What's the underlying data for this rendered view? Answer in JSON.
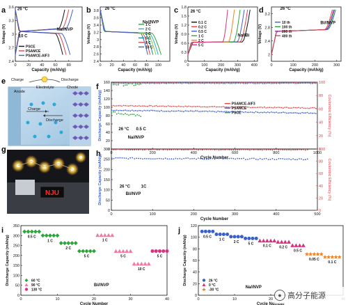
{
  "watermark": {
    "text": "高分子能源",
    "icon": "wechat-icon"
  },
  "colors": {
    "black": "#111111",
    "green": "#2ca53a",
    "blue": "#3a5fcd",
    "red": "#e3424a",
    "pink": "#f07aa0",
    "magenta": "#d6337f",
    "orange": "#f07f22",
    "cyan": "#1fb5c9",
    "lime": "#8ccf3a",
    "teal": "#138e8e",
    "purple": "#8b2bb5"
  },
  "chart_data": [
    {
      "id": "a",
      "letter": "a",
      "type": "line",
      "xlabel": "Capacity (mAh/g)",
      "ylabel": "Voltage (V)",
      "xlim": [
        0,
        100
      ],
      "ylim": [
        2.4,
        3.6
      ],
      "xticks": [
        0,
        20,
        40,
        60,
        80
      ],
      "yticks": [
        2.4,
        2.7,
        3.0,
        3.3,
        3.6
      ],
      "annotations": [
        {
          "text": "26 °C",
          "x": 3,
          "y": 3.53
        },
        {
          "text": "Na//NVP",
          "x": 62,
          "y": 3.08
        },
        {
          "text": "10 C",
          "x": 5,
          "y": 2.93
        }
      ],
      "legend": {
        "position": "bottom-left",
        "entries": [
          "PSCE",
          "PSAMCE",
          "PSAMCE-AIF3"
        ]
      },
      "series": [
        {
          "name": "PSCE",
          "color": "#111111",
          "shape": "charge",
          "cap": 74
        },
        {
          "name": "PSCE",
          "color": "#111111",
          "shape": "discharge",
          "cap": 71
        },
        {
          "name": "PSAMCE",
          "color": "#e3424a",
          "shape": "charge",
          "cap": 80
        },
        {
          "name": "PSAMCE",
          "color": "#e3424a",
          "shape": "discharge",
          "cap": 76
        },
        {
          "name": "PSAMCE-AIF3",
          "color": "#3a5fcd",
          "shape": "charge",
          "cap": 86
        },
        {
          "name": "PSAMCE-AIF3",
          "color": "#3a5fcd",
          "shape": "discharge",
          "cap": 82
        }
      ]
    },
    {
      "id": "b",
      "letter": "b",
      "type": "line",
      "xlabel": "Capacity (mAh/g)",
      "ylabel": "Voltage (V)",
      "xlim": [
        0,
        120
      ],
      "ylim": [
        2.4,
        3.9
      ],
      "xticks": [
        0,
        20,
        40,
        60,
        80,
        100
      ],
      "yticks": [
        2.4,
        2.6,
        2.8,
        3.0,
        3.2,
        3.4,
        3.6,
        3.8
      ],
      "annotations": [
        {
          "text": "26 °C",
          "x": 8,
          "y": 3.82
        },
        {
          "text": "Na//NVP",
          "x": 73,
          "y": 3.45
        }
      ],
      "legend": {
        "position": "center-right",
        "entries": [
          "1 C",
          "2 C",
          "3 C",
          "5 C",
          "8 C",
          "10 C"
        ]
      },
      "series": [
        {
          "name": "1 C",
          "color": "#2ca53a",
          "shape": "discharge",
          "cap": 105
        },
        {
          "name": "2 C",
          "color": "#1fb5c9",
          "shape": "discharge",
          "cap": 100
        },
        {
          "name": "3 C",
          "color": "#8ccf3a",
          "shape": "discharge",
          "cap": 96
        },
        {
          "name": "5 C",
          "color": "#138e8e",
          "shape": "discharge",
          "cap": 91
        },
        {
          "name": "8 C",
          "color": "#e3424a",
          "shape": "discharge",
          "cap": 86
        },
        {
          "name": "10 C",
          "color": "#3a5fcd",
          "shape": "discharge",
          "cap": 82
        }
      ]
    },
    {
      "id": "c",
      "letter": "c",
      "type": "line",
      "xlabel": "Capacity (mAh/g)",
      "ylabel": "Voltage (V)",
      "xlim": [
        0,
        420
      ],
      "ylim": [
        0.0,
        1.8
      ],
      "xticks": [
        0,
        100,
        200,
        300,
        400
      ],
      "yticks": [
        0.0,
        0.3,
        0.6,
        0.9,
        1.2,
        1.5,
        1.8
      ],
      "annotations": [
        {
          "text": "26 °C",
          "x": 15,
          "y": 1.62
        },
        {
          "text": "Na//Bi",
          "x": 300,
          "y": 0.82
        }
      ],
      "legend": {
        "position": "center-left",
        "entries": [
          "0.1 C",
          "0.2 C",
          "0.5 C",
          "1 C",
          "2 C",
          "5 C"
        ]
      },
      "series": [
        {
          "name": "0.1 C",
          "color": "#111111",
          "shape": "charge",
          "cap": 375
        },
        {
          "name": "0.2 C",
          "color": "#e3424a",
          "shape": "charge",
          "cap": 360
        },
        {
          "name": "0.5 C",
          "color": "#3a5fcd",
          "shape": "charge",
          "cap": 340
        },
        {
          "name": "1 C",
          "color": "#2ca53a",
          "shape": "charge",
          "cap": 315
        },
        {
          "name": "2 C",
          "color": "#f07f22",
          "shape": "charge",
          "cap": 280
        },
        {
          "name": "5 C",
          "color": "#d6337f",
          "shape": "charge",
          "cap": 240
        }
      ]
    },
    {
      "id": "d",
      "letter": "d",
      "type": "line",
      "xlabel": "Capacity (mAh/g)",
      "ylabel": "Voltage (V)",
      "xlim": [
        0,
        320
      ],
      "ylim": [
        1.8,
        3.4
      ],
      "xticks": [
        0,
        100,
        200,
        300
      ],
      "yticks": [
        2.0,
        2.4,
        2.8,
        3.2
      ],
      "annotations": [
        {
          "text": "26 °C",
          "x": 40,
          "y": 3.32
        },
        {
          "text": "Bi//NVP",
          "x": 225,
          "y": 2.9
        }
      ],
      "legend": {
        "position": "center-left",
        "entries": [
          "10 th",
          "100 th",
          "200 th",
          "400 th"
        ]
      },
      "series": [
        {
          "name": "10 th",
          "color": "#3a5fcd",
          "shape": "charge",
          "cap": 295
        },
        {
          "name": "100 th",
          "color": "#2ca53a",
          "shape": "charge",
          "cap": 290
        },
        {
          "name": "200 th",
          "color": "#8b2bb5",
          "shape": "charge",
          "cap": 286
        },
        {
          "name": "400 th",
          "color": "#e3424a",
          "shape": "charge",
          "cap": 280
        }
      ]
    },
    {
      "id": "f",
      "letter": "f",
      "type": "scatter",
      "xlabel": "Cycle Number",
      "ylabel": "Discharge Capacity (mAh/g)",
      "y2label": "Coulombic Efficiency (%)",
      "xlim": [
        0,
        1000
      ],
      "ylim": [
        0,
        160
      ],
      "y2lim": [
        0,
        100
      ],
      "xticks": [
        0,
        200,
        400,
        600,
        800,
        1000
      ],
      "yticks": [
        0,
        20,
        40,
        60,
        80,
        100,
        120,
        140,
        160
      ],
      "y2ticks": [
        0,
        20,
        40,
        60,
        80,
        100
      ],
      "annotations": [
        {
          "text": "26 °C",
          "x": 35,
          "y": 45
        },
        {
          "text": "0.5 C",
          "x": 120,
          "y": 45
        },
        {
          "text": "Na//NVP",
          "x": 80,
          "y": 25
        }
      ],
      "legend": {
        "position": "center-right",
        "entries": [
          "PSAMCE-AIF3",
          "PSAMCE",
          "PSCE"
        ]
      },
      "series": [
        {
          "name": "PSAMCE-AIF3",
          "color": "#e3424a",
          "axis": "y",
          "xmax": 1000,
          "start": 104,
          "end": 98,
          "noise": 1.0
        },
        {
          "name": "PSAMCE",
          "color": "#3a5fcd",
          "axis": "y",
          "xmax": 1000,
          "start": 93,
          "end": 86,
          "noise": 1.2
        },
        {
          "name": "PSCE",
          "color": "#2ca53a",
          "axis": "y",
          "xmax": 150,
          "start": 88,
          "end": 78,
          "noise": 2.5
        },
        {
          "name": "CE PSAMCE-AIF3",
          "color": "#e3424a",
          "axis": "y2",
          "xmax": 1000,
          "start": 99,
          "end": 99,
          "noise": 0.4
        },
        {
          "name": "CE PSAMCE",
          "color": "#3a5fcd",
          "axis": "y2",
          "xmax": 1000,
          "start": 98.5,
          "end": 98.5,
          "noise": 0.5
        },
        {
          "name": "CE PSCE",
          "color": "#2ca53a",
          "axis": "y2",
          "xmax": 150,
          "start": 97,
          "end": 96,
          "noise": 2.0
        }
      ]
    },
    {
      "id": "h",
      "letter": "h",
      "type": "scatter",
      "xlabel": "Cycle Number",
      "ylabel": "Discharge Capacity (mAh/g)",
      "y2label": "Coulombic Efficiency (%)",
      "xlim": [
        0,
        500
      ],
      "ylim": [
        0,
        300
      ],
      "y2lim": [
        0,
        100
      ],
      "xticks": [
        0,
        100,
        200,
        300,
        400,
        500
      ],
      "yticks": [
        0,
        50,
        100,
        150,
        200,
        250,
        300
      ],
      "y2ticks": [
        0,
        20,
        40,
        60,
        80,
        100
      ],
      "annotations": [
        {
          "text": "26 °C",
          "x": 20,
          "y": 110
        },
        {
          "text": "1C",
          "x": 72,
          "y": 110
        },
        {
          "text": "Bi//NVP",
          "x": 35,
          "y": 75
        }
      ],
      "series": [
        {
          "name": "Capacity",
          "color": "#3a5fcd",
          "axis": "y",
          "xmax": 480,
          "start": 255,
          "end": 250,
          "noise": 3
        },
        {
          "name": "CE",
          "color": "#e3424a",
          "axis": "y2",
          "xmax": 480,
          "start": 99,
          "end": 98.5,
          "noise": 0.6
        }
      ]
    },
    {
      "id": "i",
      "letter": "i",
      "type": "rate",
      "xlabel": "Cycle Number",
      "ylabel": "Discharge Capacity (mAh/g)",
      "xlim": [
        0,
        40
      ],
      "ylim": [
        0,
        350
      ],
      "xticks": [
        0,
        10,
        20,
        30,
        40
      ],
      "yticks": [
        0,
        50,
        100,
        150,
        200,
        250,
        300,
        350
      ],
      "annotations": [
        {
          "text": "Bi//NVP",
          "x": 20,
          "y": 45
        }
      ],
      "legend": {
        "position": "bottom-left",
        "entries": [
          "60 °C",
          "90 °C",
          "130 °C"
        ]
      },
      "segments": [
        {
          "series": "60 °C",
          "color": "#2ca53a",
          "marker": "diamond",
          "x0": 1,
          "x1": 5,
          "y": 320,
          "label": "0.5 C"
        },
        {
          "series": "60 °C",
          "color": "#2ca53a",
          "marker": "diamond",
          "x0": 6,
          "x1": 10,
          "y": 300,
          "label": "1 C"
        },
        {
          "series": "60 °C",
          "color": "#2ca53a",
          "marker": "diamond",
          "x0": 11,
          "x1": 15,
          "y": 262,
          "label": "2 C"
        },
        {
          "series": "60 °C",
          "color": "#2ca53a",
          "marker": "diamond",
          "x0": 16,
          "x1": 20,
          "y": 222,
          "label": "5 C"
        },
        {
          "series": "90 °C",
          "color": "#f07aa0",
          "marker": "triangle",
          "x0": 21,
          "x1": 25,
          "y": 302,
          "label": "1 C"
        },
        {
          "series": "90 °C",
          "color": "#f07aa0",
          "marker": "triangle",
          "x0": 26,
          "x1": 30,
          "y": 222,
          "label": "5 C"
        },
        {
          "series": "90 °C",
          "color": "#f07aa0",
          "marker": "triangle",
          "x0": 31,
          "x1": 35,
          "y": 158,
          "label": "10 C"
        },
        {
          "series": "130 °C",
          "color": "#d6337f",
          "marker": "circle",
          "x0": 36,
          "x1": 40,
          "y": 222,
          "label": "5 C"
        }
      ]
    },
    {
      "id": "j",
      "letter": "j",
      "type": "rate",
      "xlabel": "Cycle Number",
      "ylabel": "Discharge Capacity (mAh/g)",
      "xlim": [
        0,
        40
      ],
      "ylim": [
        0,
        120
      ],
      "xticks": [
        0,
        10,
        20,
        30,
        40
      ],
      "yticks": [
        0,
        20,
        40,
        60,
        80,
        100,
        120
      ],
      "annotations": [
        {
          "text": "Na//NVP",
          "x": 13,
          "y": 12
        }
      ],
      "legend": {
        "position": "bottom-left",
        "entries": [
          "26 °C",
          "0 °C",
          "-30 °C"
        ]
      },
      "segments": [
        {
          "series": "26 °C",
          "color": "#3a5fcd",
          "marker": "circle",
          "x0": 1,
          "x1": 4,
          "y": 110,
          "label": "0.5 C"
        },
        {
          "series": "26 °C",
          "color": "#3a5fcd",
          "marker": "circle",
          "x0": 5,
          "x1": 8,
          "y": 105,
          "label": "1 C"
        },
        {
          "series": "26 °C",
          "color": "#3a5fcd",
          "marker": "circle",
          "x0": 9,
          "x1": 12,
          "y": 101,
          "label": "2 C"
        },
        {
          "series": "26 °C",
          "color": "#3a5fcd",
          "marker": "circle",
          "x0": 13,
          "x1": 16,
          "y": 98,
          "label": "5 C"
        },
        {
          "series": "0 °C",
          "color": "#d6337f",
          "marker": "triangle",
          "x0": 17,
          "x1": 21,
          "y": 94,
          "label": "0.1 C"
        },
        {
          "series": "0 °C",
          "color": "#d6337f",
          "marker": "triangle",
          "x0": 22,
          "x1": 25,
          "y": 92,
          "label": "0.2 C"
        },
        {
          "series": "0 °C",
          "color": "#d6337f",
          "marker": "triangle",
          "x0": 26,
          "x1": 29,
          "y": 86,
          "label": "0.5 C"
        },
        {
          "series": "-30 °C",
          "color": "#f07f22",
          "marker": "star",
          "x0": 30,
          "x1": 34,
          "y": 71,
          "label": "0.05 C"
        },
        {
          "series": "-30 °C",
          "color": "#f07f22",
          "marker": "star",
          "x0": 35,
          "x1": 39,
          "y": 66,
          "label": "0.1 C"
        }
      ]
    }
  ],
  "schematic": {
    "letter": "e",
    "labels": {
      "charge": "Charge",
      "discharge": "Discharge",
      "anode": "Anode",
      "electrolyte": "Electrolyte",
      "chode": "Chode",
      "inner_charge": "Charge",
      "inner_discharge": "Discharge"
    }
  },
  "photo": {
    "letter": "g",
    "display": "NJU"
  }
}
